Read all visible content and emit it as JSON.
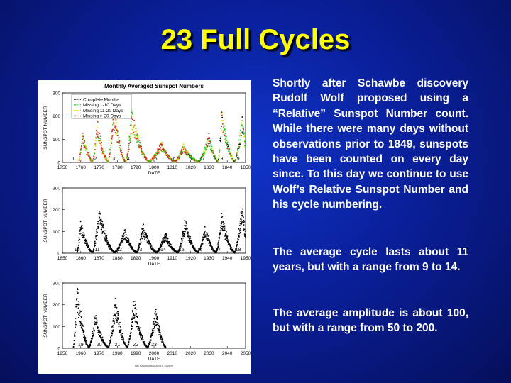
{
  "title": "23 Full Cycles",
  "paragraphs": [
    "Shortly after Schawbe discovery Rudolf Wolf proposed using a “Relative” Sunspot Number count. While there were many days without observations prior to 1849, sunspots have been counted on every day since. To this day we continue to use Wolf’s Relative Sunspot Number and his cycle numbering.",
    "The average cycle lasts about 11 years, but with a range from 9 to 14.",
    "The average amplitude is about 100, but with a range from 50 to 200."
  ],
  "colors": {
    "background": "#0a1f9a",
    "title": "#ffff00",
    "text": "#ffffff",
    "complete": "#000000",
    "missing_1_10": "#22cc22",
    "missing_11_20": "#dddd00",
    "missing_gt_20": "#dd2222"
  },
  "chart_data": [
    {
      "type": "scatter",
      "title": "Monthly Averaged Sunspot Numbers",
      "xlabel": "DATE",
      "ylabel": "SUNSPOT NUMBER",
      "xlim": [
        1750,
        1850
      ],
      "ylim": [
        0,
        300
      ],
      "xticks": [
        1750,
        1760,
        1770,
        1780,
        1790,
        1800,
        1810,
        1820,
        1830,
        1840,
        1850
      ],
      "yticks": [
        0,
        100,
        200,
        300
      ],
      "legend_position": "top-left",
      "legend": [
        "Complete Months",
        "Missing 1-10 Days",
        "Missing 11-20 Days",
        "Missing > 20 Days"
      ],
      "cycles": [
        {
          "label": "1",
          "year": 1756
        },
        {
          "label": "2",
          "year": 1768
        },
        {
          "label": "3",
          "year": 1778
        },
        {
          "label": "4",
          "year": 1786
        },
        {
          "label": "5",
          "year": 1801
        },
        {
          "label": "6",
          "year": 1811
        },
        {
          "label": "7",
          "year": 1827
        },
        {
          "label": "8",
          "year": 1837
        },
        {
          "label": "9",
          "year": 1846
        }
      ],
      "maxima": [
        {
          "year": 1761,
          "value": 110
        },
        {
          "year": 1769,
          "value": 150
        },
        {
          "year": 1778,
          "value": 210
        },
        {
          "year": 1788,
          "value": 180
        },
        {
          "year": 1804,
          "value": 70
        },
        {
          "year": 1816,
          "value": 60
        },
        {
          "year": 1830,
          "value": 100
        },
        {
          "year": 1837,
          "value": 190
        },
        {
          "year": 1848,
          "value": 160
        }
      ]
    },
    {
      "type": "scatter",
      "xlabel": "DATE",
      "ylabel": "SUNSPOT NUMBER",
      "xlim": [
        1850,
        1950
      ],
      "ylim": [
        0,
        300
      ],
      "xticks": [
        1850,
        1860,
        1870,
        1880,
        1890,
        1900,
        1910,
        1920,
        1930,
        1940,
        1950
      ],
      "yticks": [
        0,
        100,
        200,
        300
      ],
      "cycles": [
        {
          "label": "10",
          "year": 1858
        },
        {
          "label": "11",
          "year": 1869
        },
        {
          "label": "12",
          "year": 1881
        },
        {
          "label": "13",
          "year": 1892
        },
        {
          "label": "14",
          "year": 1905
        },
        {
          "label": "15",
          "year": 1915
        },
        {
          "label": "16",
          "year": 1925
        },
        {
          "label": "17",
          "year": 1935
        },
        {
          "label": "18",
          "year": 1946
        }
      ],
      "maxima": [
        {
          "year": 1860,
          "value": 120
        },
        {
          "year": 1870,
          "value": 170
        },
        {
          "year": 1884,
          "value": 90
        },
        {
          "year": 1894,
          "value": 110
        },
        {
          "year": 1906,
          "value": 80
        },
        {
          "year": 1917,
          "value": 130
        },
        {
          "year": 1928,
          "value": 100
        },
        {
          "year": 1937,
          "value": 150
        },
        {
          "year": 1948,
          "value": 180
        }
      ]
    },
    {
      "type": "scatter",
      "xlabel": "DATE",
      "ylabel": "SUNSPOT NUMBER",
      "xlim": [
        1950,
        2050
      ],
      "ylim": [
        0,
        300
      ],
      "xticks": [
        1950,
        1960,
        1970,
        1980,
        1990,
        2000,
        2010,
        2020,
        2030,
        2040,
        2050
      ],
      "yticks": [
        0,
        100,
        200,
        300
      ],
      "footer": "HATHAWAY/NASA/MSFC 2009/09",
      "cycles": [
        {
          "label": "19",
          "year": 1960
        },
        {
          "label": "20",
          "year": 1970
        },
        {
          "label": "21",
          "year": 1980
        },
        {
          "label": "22",
          "year": 1990
        },
        {
          "label": "23",
          "year": 2000
        }
      ],
      "maxima": [
        {
          "year": 1958,
          "value": 240
        },
        {
          "year": 1968,
          "value": 130
        },
        {
          "year": 1979,
          "value": 190
        },
        {
          "year": 1989,
          "value": 190
        },
        {
          "year": 2001,
          "value": 150
        }
      ]
    }
  ]
}
